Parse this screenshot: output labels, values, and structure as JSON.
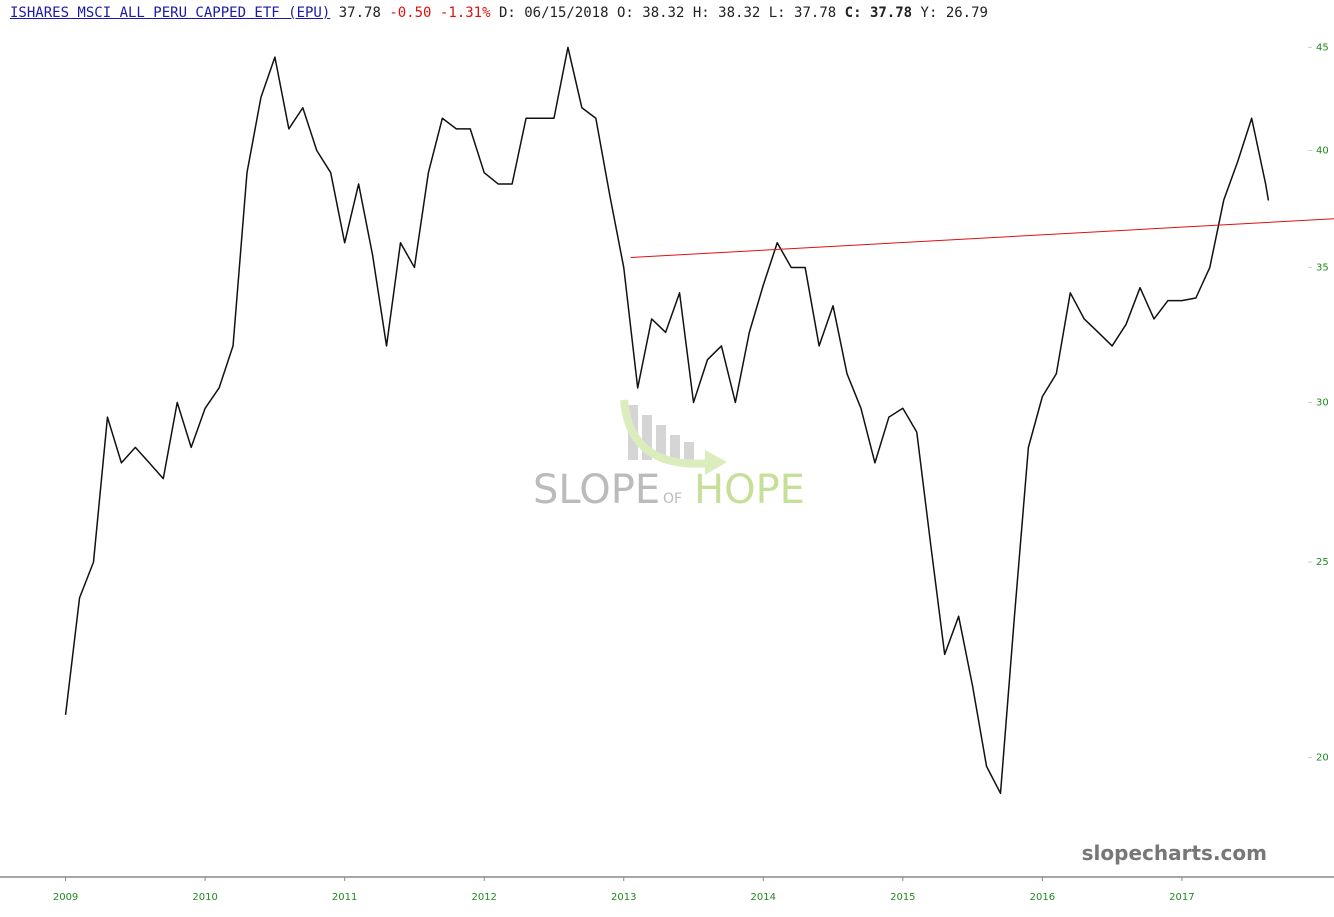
{
  "header": {
    "title": "ISHARES MSCI ALL PERU CAPPED ETF (EPU)",
    "last": "37.78",
    "change": "-0.50",
    "change_pct": "-1.31%",
    "fields": [
      {
        "label": "D:",
        "value": "06/15/2018"
      },
      {
        "label": "O:",
        "value": "38.32"
      },
      {
        "label": "H:",
        "value": "38.32"
      },
      {
        "label": "L:",
        "value": "37.78"
      },
      {
        "label": "C:",
        "value": "37.78",
        "bold": true
      },
      {
        "label": "Y:",
        "value": "26.79"
      }
    ]
  },
  "chart_data": {
    "type": "line",
    "log_y": true,
    "color": "#111111",
    "x": [
      2009.0,
      2009.1,
      2009.2,
      2009.3,
      2009.4,
      2009.5,
      2009.6,
      2009.7,
      2009.8,
      2009.9,
      2010.0,
      2010.1,
      2010.2,
      2010.3,
      2010.4,
      2010.5,
      2010.6,
      2010.7,
      2010.8,
      2010.9,
      2011.0,
      2011.1,
      2011.2,
      2011.3,
      2011.4,
      2011.5,
      2011.6,
      2011.7,
      2011.8,
      2011.9,
      2012.0,
      2012.1,
      2012.2,
      2012.3,
      2012.4,
      2012.5,
      2012.6,
      2012.7,
      2012.8,
      2012.9,
      2013.0,
      2013.1,
      2013.2,
      2013.3,
      2013.4,
      2013.5,
      2013.6,
      2013.7,
      2013.8,
      2013.9,
      2014.0,
      2014.1,
      2014.2,
      2014.3,
      2014.4,
      2014.5,
      2014.6,
      2014.7,
      2014.8,
      2014.9,
      2015.0,
      2015.1,
      2015.2,
      2015.3,
      2015.4,
      2015.5,
      2015.6,
      2015.7,
      2015.8,
      2015.9,
      2016.0,
      2016.1,
      2016.2,
      2016.3,
      2016.4,
      2016.5,
      2016.6,
      2016.7,
      2016.8,
      2016.9,
      2017.0,
      2017.1,
      2017.2,
      2017.3,
      2017.4,
      2017.5,
      2017.6,
      2017.62
    ],
    "values": [
      21,
      24,
      25,
      29.5,
      28,
      28.5,
      28,
      27.5,
      30,
      28.5,
      29.8,
      30.5,
      32,
      39,
      42.5,
      44.5,
      41,
      42,
      40,
      39,
      36,
      38.5,
      35.5,
      32,
      36,
      35,
      39,
      41.5,
      41,
      41,
      39,
      38.5,
      38.5,
      41.5,
      41.5,
      41.5,
      45,
      42,
      41.5,
      38,
      35,
      30.5,
      33,
      32.5,
      34,
      30,
      31.5,
      32,
      30,
      32.5,
      34.3,
      36,
      35,
      35,
      32,
      33.5,
      31,
      29.8,
      28,
      29.5,
      29.8,
      29,
      25.5,
      22.5,
      23.5,
      21.7,
      19.8,
      19.2,
      23.5,
      28.5,
      30.2,
      31,
      34,
      33,
      32.5,
      32,
      32.8,
      34.2,
      33,
      33.7,
      33.7,
      33.8,
      35,
      37.8,
      39.5,
      41.5,
      38.5,
      37.78
    ],
    "trendline": {
      "x": [
        2013.05,
        2018.09
      ],
      "values": [
        35.4,
        37.0
      ],
      "color": "#e01010"
    },
    "xlim": [
      2008.53,
      2018.09
    ],
    "xticks": [
      2009,
      2010,
      2011,
      2012,
      2013,
      2014,
      2015,
      2016,
      2017
    ],
    "ylim": [
      17.45,
      45.9
    ],
    "yticks": [
      20,
      25,
      30,
      35,
      40,
      45
    ],
    "watermark": [
      "SLOPE",
      "OF",
      "HOPE"
    ],
    "credit": "slopecharts.com"
  }
}
